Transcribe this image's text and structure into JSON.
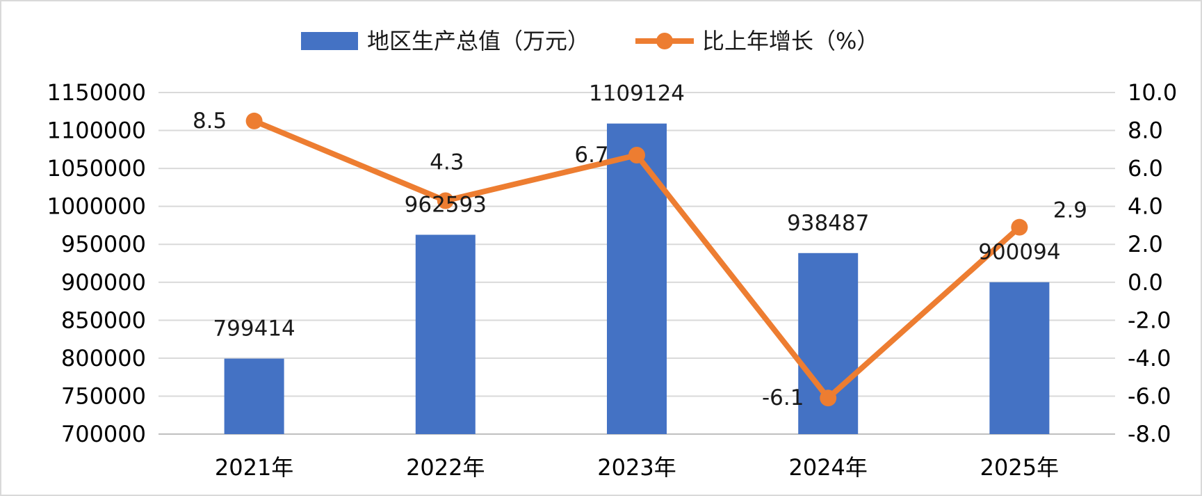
{
  "chart_data": {
    "type": "bar",
    "categories": [
      "2021年",
      "2022年",
      "2023年",
      "2024年",
      "2025年"
    ],
    "series": [
      {
        "name": "地区生产总值（万元）",
        "type": "bar",
        "axis": "left",
        "color": "#4472C4",
        "values": [
          799414,
          962593,
          1109124,
          938487,
          900094
        ],
        "labels": [
          "799414",
          "962593",
          "1109124",
          "938487",
          "900094"
        ]
      },
      {
        "name": "比上年增长（%）",
        "type": "line",
        "axis": "right",
        "color": "#ED7D31",
        "values": [
          8.5,
          4.3,
          6.7,
          -6.1,
          2.9
        ],
        "labels": [
          "8.5",
          "4.3",
          "6.7",
          "-6.1",
          "2.9"
        ]
      }
    ],
    "left_axis": {
      "ylim": [
        700000,
        1150000
      ],
      "ticks": [
        "1150000",
        "1100000",
        "1050000",
        "1000000",
        "950000",
        "900000",
        "850000",
        "800000",
        "750000",
        "700000"
      ]
    },
    "right_axis": {
      "ylim": [
        -8,
        10
      ],
      "ticks": [
        "10.0",
        "8.0",
        "6.0",
        "4.0",
        "2.0",
        "0.0",
        "-2.0",
        "-4.0",
        "-6.0",
        "-8.0"
      ]
    },
    "grid": true,
    "legend": "top-center"
  }
}
